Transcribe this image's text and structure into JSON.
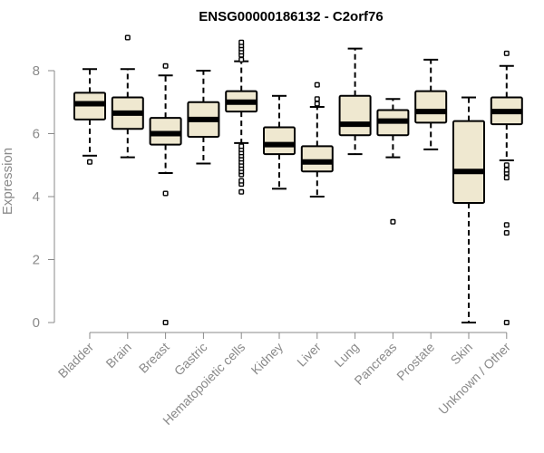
{
  "chart_data": {
    "type": "boxplot",
    "title": "ENSG00000186132 - C2orf76",
    "xlabel": "",
    "ylabel": "Expression",
    "ylim": [
      0,
      9.3
    ],
    "yticks": [
      0,
      2,
      4,
      6,
      8
    ],
    "box_fill": "#efe8d0",
    "categories": [
      "Bladder",
      "Brain",
      "Breast",
      "Gastric",
      "Hematopoietic cells",
      "Kidney",
      "Liver",
      "Lung",
      "Pancreas",
      "Prostate",
      "Skin",
      "Unknown / Other"
    ],
    "boxes": [
      {
        "category": "Bladder",
        "whisker_low": 5.3,
        "q1": 6.45,
        "median": 6.95,
        "q3": 7.3,
        "whisker_high": 8.05,
        "outliers": [
          5.1
        ]
      },
      {
        "category": "Brain",
        "whisker_low": 5.25,
        "q1": 6.15,
        "median": 6.65,
        "q3": 7.15,
        "whisker_high": 8.05,
        "outliers": [
          9.05
        ]
      },
      {
        "category": "Breast",
        "whisker_low": 4.75,
        "q1": 5.65,
        "median": 6.0,
        "q3": 6.5,
        "whisker_high": 7.85,
        "outliers": [
          0.0,
          4.1,
          8.15
        ]
      },
      {
        "category": "Gastric",
        "whisker_low": 5.05,
        "q1": 5.9,
        "median": 6.45,
        "q3": 7.0,
        "whisker_high": 8.0,
        "outliers": []
      },
      {
        "category": "Hematopoietic cells",
        "whisker_low": 5.7,
        "q1": 6.7,
        "median": 7.0,
        "q3": 7.35,
        "whisker_high": 8.3,
        "outliers": [
          4.15,
          4.4,
          4.5,
          4.7,
          4.8,
          4.9,
          5.0,
          5.1,
          5.2,
          5.3,
          5.4,
          5.5,
          5.6,
          8.35,
          8.5,
          8.6,
          8.7,
          8.8,
          8.9
        ]
      },
      {
        "category": "Kidney",
        "whisker_low": 4.25,
        "q1": 5.35,
        "median": 5.65,
        "q3": 6.2,
        "whisker_high": 7.2,
        "outliers": []
      },
      {
        "category": "Liver",
        "whisker_low": 4.0,
        "q1": 4.8,
        "median": 5.1,
        "q3": 5.6,
        "whisker_high": 6.85,
        "outliers": [
          6.95,
          7.1,
          7.55
        ]
      },
      {
        "category": "Lung",
        "whisker_low": 5.35,
        "q1": 5.95,
        "median": 6.3,
        "q3": 7.2,
        "whisker_high": 8.7,
        "outliers": []
      },
      {
        "category": "Pancreas",
        "whisker_low": 5.25,
        "q1": 5.95,
        "median": 6.4,
        "q3": 6.75,
        "whisker_high": 7.1,
        "outliers": [
          3.2
        ]
      },
      {
        "category": "Prostate",
        "whisker_low": 5.5,
        "q1": 6.35,
        "median": 6.7,
        "q3": 7.35,
        "whisker_high": 8.35,
        "outliers": []
      },
      {
        "category": "Skin",
        "whisker_low": 0.0,
        "q1": 3.8,
        "median": 4.8,
        "q3": 6.4,
        "whisker_high": 7.15,
        "outliers": []
      },
      {
        "category": "Unknown / Other",
        "whisker_low": 5.15,
        "q1": 6.3,
        "median": 6.7,
        "q3": 7.15,
        "whisker_high": 8.15,
        "outliers": [
          0.0,
          2.85,
          3.1,
          4.6,
          4.75,
          4.85,
          5.0,
          8.55
        ]
      }
    ]
  }
}
